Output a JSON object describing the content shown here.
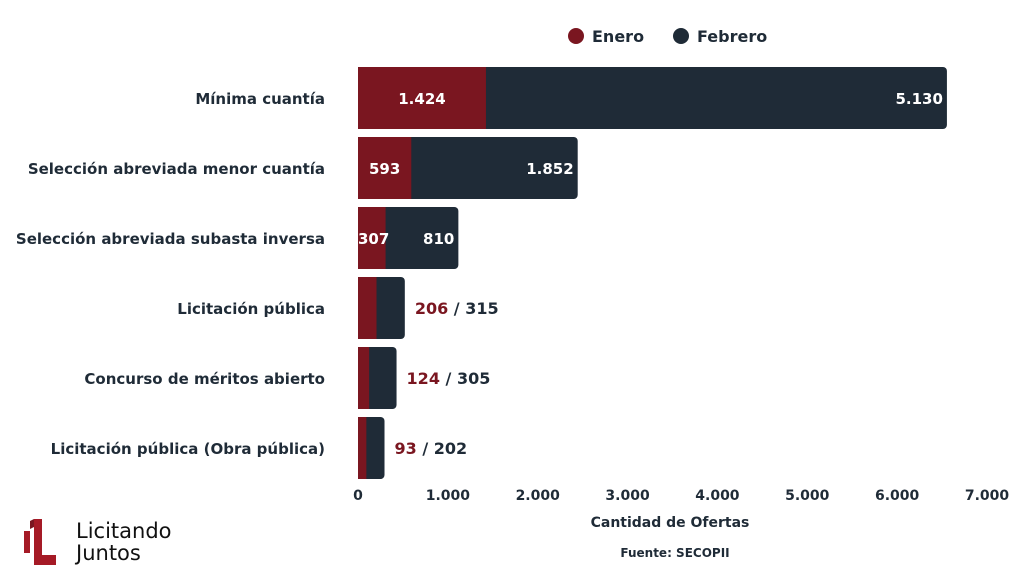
{
  "chart_data": {
    "type": "bar",
    "orientation": "horizontal",
    "stacked": true,
    "categories": [
      "Mínima cuantía",
      "Selección abreviada menor cuantía",
      "Selección abreviada subasta inversa",
      "Licitación pública",
      "Concurso de méritos abierto",
      "Licitación pública (Obra pública)"
    ],
    "series": [
      {
        "name": "Enero",
        "color": "#7a1620",
        "values": [
          1424,
          593,
          307,
          206,
          124,
          93
        ],
        "labels": [
          "1.424",
          "593",
          "307",
          "206",
          "124",
          "93"
        ]
      },
      {
        "name": "Febrero",
        "color": "#1f2b37",
        "values": [
          5130,
          1852,
          810,
          315,
          305,
          202
        ],
        "labels": [
          "5.130",
          "1.852",
          "810",
          "315",
          "305",
          "202"
        ]
      }
    ],
    "xlabel": "Cantidad de Ofertas",
    "xlim": [
      0,
      7000
    ],
    "xticks": [
      0,
      1000,
      2000,
      3000,
      4000,
      5000,
      6000,
      7000
    ],
    "xtick_labels": [
      "0",
      "1.000",
      "2.000",
      "3.000",
      "4.000",
      "5.000",
      "6.000",
      "7.000"
    ],
    "legend_position": "top",
    "grid": false,
    "source": "Fuente: SECOPII"
  },
  "logo": {
    "line1": "Licitando",
    "line2": "Juntos"
  }
}
